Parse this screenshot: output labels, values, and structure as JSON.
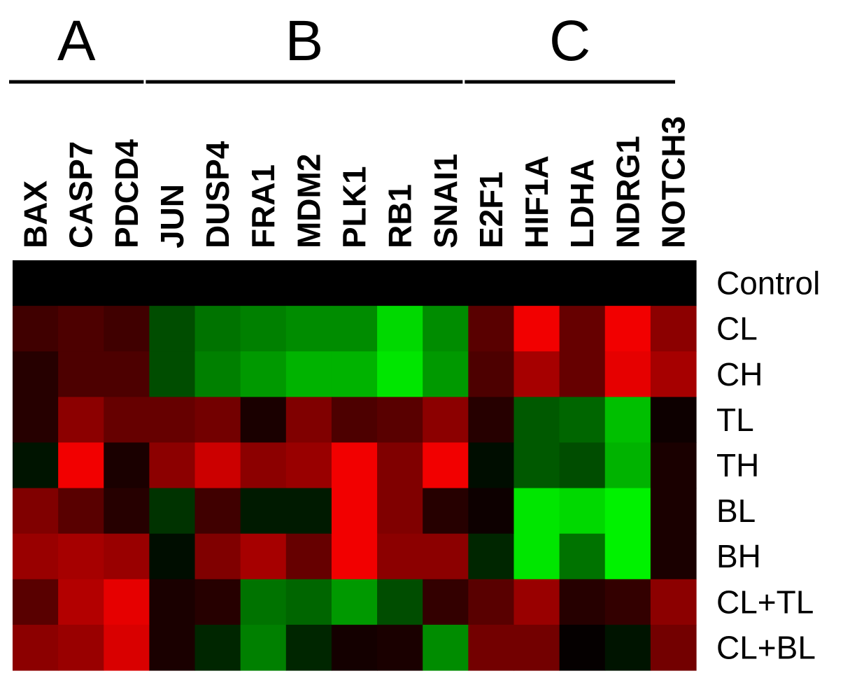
{
  "chart_data": {
    "type": "heatmap",
    "color_scale": {
      "negative": "#00ff00",
      "zero": "#000000",
      "positive": "#ff0000"
    },
    "groups": [
      {
        "label": "A",
        "start": 0,
        "end": 2
      },
      {
        "label": "B",
        "start": 3,
        "end": 9
      },
      {
        "label": "C",
        "start": 10,
        "end": 14
      }
    ],
    "columns": [
      "BAX",
      "CASP7",
      "PDCD4",
      "JUN",
      "DUSP4",
      "FRA1",
      "MDM2",
      "PLK1",
      "RB1",
      "SNAI1",
      "E2F1",
      "HIF1A",
      "LDHA",
      "NDRG1",
      "NOTCH3"
    ],
    "rows": [
      "Control",
      "CL",
      "CH",
      "TL",
      "TH",
      "BL",
      "BH",
      "CL+TL",
      "CL+BL"
    ],
    "values": [
      [
        0,
        0,
        0,
        0,
        0,
        0,
        0,
        0,
        0,
        0,
        0,
        0,
        0,
        0,
        0
      ],
      [
        0.25,
        0.3,
        0.25,
        -0.3,
        -0.45,
        -0.5,
        -0.55,
        -0.55,
        -0.85,
        -0.55,
        0.35,
        0.95,
        0.4,
        0.95,
        0.55
      ],
      [
        0.15,
        0.3,
        0.3,
        -0.3,
        -0.5,
        -0.6,
        -0.7,
        -0.7,
        -0.9,
        -0.6,
        0.3,
        0.65,
        0.4,
        0.9,
        0.65
      ],
      [
        0.15,
        0.55,
        0.4,
        0.4,
        0.45,
        0.1,
        0.5,
        0.3,
        0.35,
        0.55,
        0.15,
        -0.35,
        -0.4,
        -0.75,
        0.05
      ],
      [
        -0.08,
        0.95,
        0.1,
        0.55,
        0.8,
        0.55,
        0.6,
        0.95,
        0.5,
        0.95,
        -0.05,
        -0.35,
        -0.3,
        -0.7,
        0.1
      ],
      [
        0.5,
        0.35,
        0.15,
        -0.2,
        0.25,
        -0.1,
        -0.1,
        0.95,
        0.5,
        0.15,
        0.05,
        -0.9,
        -0.85,
        -0.95,
        0.1
      ],
      [
        0.6,
        0.65,
        0.6,
        -0.05,
        0.5,
        0.65,
        0.4,
        0.95,
        0.55,
        0.55,
        -0.15,
        -0.9,
        -0.45,
        -0.95,
        0.1
      ],
      [
        0.35,
        0.7,
        0.9,
        0.1,
        0.15,
        -0.45,
        -0.4,
        -0.6,
        -0.3,
        0.2,
        0.35,
        0.6,
        0.15,
        0.2,
        0.55
      ],
      [
        0.55,
        0.6,
        0.85,
        0.1,
        -0.15,
        -0.5,
        -0.15,
        0.08,
        0.1,
        -0.55,
        0.45,
        0.45,
        0.02,
        -0.08,
        0.45
      ]
    ]
  }
}
